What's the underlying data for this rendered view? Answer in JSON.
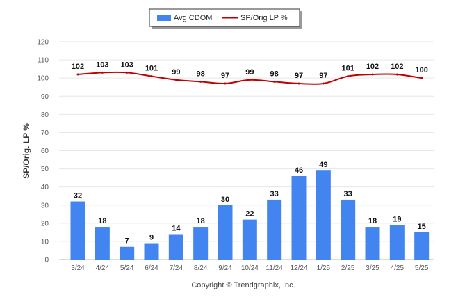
{
  "chart_data": {
    "type": "bar",
    "categories": [
      "3/24",
      "4/24",
      "5/24",
      "6/24",
      "7/24",
      "8/24",
      "9/24",
      "10/24",
      "11/24",
      "12/24",
      "1/25",
      "2/25",
      "3/25",
      "4/25",
      "5/25"
    ],
    "series": [
      {
        "name": "Avg CDOM",
        "type": "bar",
        "color": "#4285f0",
        "values": [
          32,
          18,
          7,
          9,
          14,
          18,
          30,
          22,
          33,
          46,
          49,
          33,
          18,
          19,
          15
        ]
      },
      {
        "name": "SP/Orig LP %",
        "type": "line",
        "color": "#c00000",
        "values": [
          102,
          103,
          103,
          101,
          99,
          98,
          97,
          99,
          98,
          97,
          97,
          101,
          102,
          102,
          100
        ]
      }
    ],
    "ylabel": "SP/Orig. LP %",
    "ylim": [
      0,
      120
    ],
    "yticks": [
      0,
      10,
      20,
      30,
      40,
      50,
      60,
      70,
      80,
      90,
      100,
      110,
      120
    ],
    "grid": true,
    "legend_position": "top-center"
  },
  "footer": {
    "copyright": "Copyright © Trendgraphix, Inc."
  }
}
